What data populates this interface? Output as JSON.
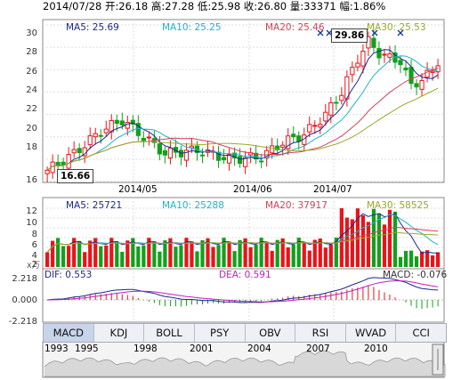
{
  "header": {
    "text": "2014/07/28 开:26.18 高:27.28 低:25.98 收:26.80 量:33371 幅:1.86%"
  },
  "main_chart": {
    "ma_legend": [
      {
        "label": "MA5: 25.69",
        "color": "#1a2a8a"
      },
      {
        "label": "MA10: 25.25",
        "color": "#1fb3c8"
      },
      {
        "label": "MA20: 25.46",
        "color": "#d4405a"
      },
      {
        "label": "MA30: 25.53",
        "color": "#9aa828"
      }
    ],
    "y_ticks": [
      "30",
      "28",
      "26",
      "24",
      "22",
      "20",
      "18",
      "16"
    ],
    "x_ticks": [
      "2014/05",
      "2014/06",
      "2014/07"
    ],
    "high_callout": "29.86",
    "low_callout": "16.66"
  },
  "volume_chart": {
    "ma_legend": [
      {
        "label": "MA5: 25721",
        "color": "#1a2a8a"
      },
      {
        "label": "MA10: 25288",
        "color": "#1fb3c8"
      },
      {
        "label": "MA20: 37917",
        "color": "#d4405a"
      },
      {
        "label": "MA30: 58525",
        "color": "#9aa828"
      }
    ],
    "y_ticks": [
      "12",
      "10",
      "8",
      "6",
      "4",
      "2"
    ],
    "unit_label": "x万"
  },
  "macd_chart": {
    "dif_label": "DIF: 0.553",
    "dea_label": "DEA: 0.591",
    "macd_label": "MACD: -0.076",
    "y_ticks": [
      "2.218",
      "0.000",
      "-2.218"
    ],
    "dif_color": "#1a2a8a",
    "dea_color": "#c020c0"
  },
  "tabs": [
    {
      "label": "MACD",
      "active": true
    },
    {
      "label": "KDJ",
      "active": false
    },
    {
      "label": "BOLL",
      "active": false
    },
    {
      "label": "PSY",
      "active": false
    },
    {
      "label": "OBV",
      "active": false
    },
    {
      "label": "RSI",
      "active": false
    },
    {
      "label": "WVAD",
      "active": false
    },
    {
      "label": "CCI",
      "active": false
    }
  ],
  "overview": {
    "year_labels": [
      "1993",
      "1995",
      "1998",
      "2001",
      "2004",
      "2007",
      "2010"
    ]
  },
  "colors": {
    "up": "#e8141a",
    "down": "#12a01c"
  }
}
